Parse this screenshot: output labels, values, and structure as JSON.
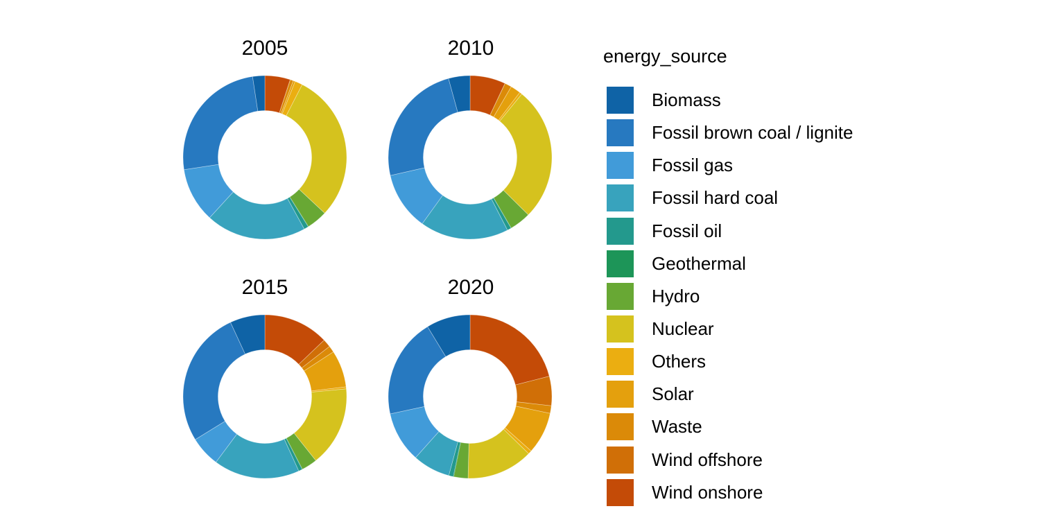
{
  "legend": {
    "title": "energy_source"
  },
  "chart_data": {
    "type": "pie",
    "subtype": "donut",
    "title": "",
    "facets": [
      "2005",
      "2010",
      "2015",
      "2020"
    ],
    "legend_title": "energy_source",
    "legend_position": "right",
    "units": "share_percent_estimated",
    "inner_radius_ratio": 0.57,
    "start_angle": "top",
    "slice_order": "alphabetical_counterclockwise_from_top",
    "grid": false,
    "categories": [
      "Biomass",
      "Fossil brown coal / lignite",
      "Fossil gas",
      "Fossil hard coal",
      "Fossil oil",
      "Geothermal",
      "Hydro",
      "Nuclear",
      "Others",
      "Solar",
      "Waste",
      "Wind offshore",
      "Wind onshore"
    ],
    "colors": [
      "#0f63a6",
      "#2779c0",
      "#419bd9",
      "#38a3bd",
      "#23998d",
      "#1d9558",
      "#68a834",
      "#d5c21e",
      "#ebae11",
      "#e4a00d",
      "#db8a08",
      "#d06f07",
      "#c44b07"
    ],
    "series": [
      {
        "name": "2005",
        "values": [
          2.4,
          25.0,
          10.8,
          19.8,
          0.9,
          0.05,
          4.1,
          29.4,
          1.5,
          0.4,
          0.6,
          0.05,
          5.0
        ]
      },
      {
        "name": "2010",
        "values": [
          4.25,
          24.3,
          11.5,
          17.5,
          0.8,
          0.05,
          4.2,
          26.5,
          0.5,
          2.0,
          1.35,
          0.05,
          7.0
        ]
      },
      {
        "name": "2015",
        "values": [
          6.9,
          26.9,
          6.0,
          17.0,
          0.75,
          0.05,
          3.1,
          15.8,
          0.4,
          7.3,
          1.3,
          1.6,
          12.9
        ]
      },
      {
        "name": "2020",
        "values": [
          8.7,
          19.7,
          10.0,
          7.4,
          0.9,
          0.1,
          2.8,
          13.1,
          0.7,
          8.3,
          1.5,
          5.8,
          21.0
        ]
      }
    ]
  }
}
